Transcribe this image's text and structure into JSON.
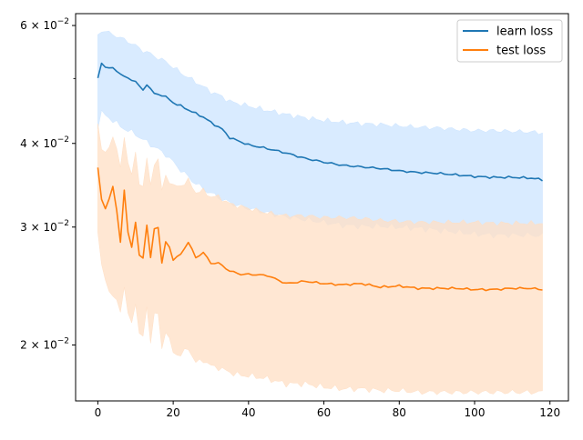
{
  "chart_data": {
    "type": "line",
    "title": "",
    "xlabel": "",
    "ylabel": "",
    "y_scale": "log",
    "xlim": [
      -5.9,
      124.9
    ],
    "ylim": [
      0.0165,
      0.0625
    ],
    "x_ticks": [
      0,
      20,
      40,
      60,
      80,
      100,
      120
    ],
    "x_tick_labels": [
      "0",
      "20",
      "40",
      "60",
      "80",
      "100",
      "120"
    ],
    "y_major_ticks": [
      0.02,
      0.03,
      0.04,
      0.06
    ],
    "y_tick_labels": [
      {
        "base": "2",
        "mult": "×",
        "ten": "10",
        "exp": "−2"
      },
      {
        "base": "3",
        "mult": "×",
        "ten": "10",
        "exp": "−2"
      },
      {
        "base": "4",
        "mult": "×",
        "ten": "10",
        "exp": "−2"
      },
      {
        "base": "6",
        "mult": "×",
        "ten": "10",
        "exp": "−2"
      }
    ],
    "y_minor_ticks": [
      0.05
    ],
    "grid": false,
    "legend": {
      "position": "top-right",
      "entries": [
        {
          "label": "learn loss",
          "color": "#1f77b4"
        },
        {
          "label": "test loss",
          "color": "#ff7f0e"
        }
      ]
    },
    "series": [
      {
        "name": "learn loss",
        "color": "#1f77b4",
        "band_color": "#cce4ff",
        "x_range": [
          0,
          118
        ],
        "anchors": {
          "x": [
            0,
            1,
            2,
            4,
            6,
            8,
            10,
            12,
            13,
            15,
            18,
            20,
            22,
            25,
            28,
            30,
            33,
            35,
            38,
            40,
            45,
            50,
            55,
            60,
            65,
            70,
            75,
            80,
            85,
            90,
            95,
            100,
            105,
            110,
            115,
            118
          ],
          "mean": [
            0.05,
            0.0527,
            0.052,
            0.0518,
            0.0508,
            0.05,
            0.0495,
            0.048,
            0.049,
            0.0475,
            0.047,
            0.046,
            0.0455,
            0.0446,
            0.0438,
            0.043,
            0.042,
            0.0408,
            0.0402,
            0.0398,
            0.0393,
            0.0387,
            0.038,
            0.0375,
            0.0371,
            0.0369,
            0.0367,
            0.0364,
            0.0362,
            0.0361,
            0.0359,
            0.0357,
            0.0356,
            0.0356,
            0.0355,
            0.0353
          ],
          "lower": [
            0.0425,
            0.0445,
            0.044,
            0.0433,
            0.0424,
            0.0418,
            0.0413,
            0.0405,
            0.0402,
            0.0395,
            0.0385,
            0.0375,
            0.0365,
            0.0352,
            0.0342,
            0.0337,
            0.033,
            0.0326,
            0.0322,
            0.032,
            0.0315,
            0.0311,
            0.0308,
            0.0305,
            0.0302,
            0.0301,
            0.0301,
            0.03,
            0.0299,
            0.0297,
            0.0295,
            0.0293,
            0.0292,
            0.0292,
            0.0292,
            0.0291
          ],
          "upper": [
            0.058,
            0.059,
            0.0588,
            0.0582,
            0.0575,
            0.0568,
            0.056,
            0.055,
            0.0548,
            0.054,
            0.053,
            0.052,
            0.051,
            0.0498,
            0.0486,
            0.0478,
            0.047,
            0.0462,
            0.0458,
            0.0455,
            0.0448,
            0.0442,
            0.0437,
            0.0433,
            0.043,
            0.0428,
            0.0427,
            0.0425,
            0.0423,
            0.0422,
            0.042,
            0.0418,
            0.0418,
            0.0417,
            0.0416,
            0.0415
          ]
        }
      },
      {
        "name": "test loss",
        "color": "#ff7f0e",
        "band_color": "#ffdfc4",
        "x_range": [
          0,
          118
        ],
        "anchors": {
          "x": [
            0,
            1,
            2,
            3,
            4,
            5,
            6,
            7,
            8,
            9,
            10,
            11,
            12,
            13,
            14,
            15,
            16,
            17,
            18,
            19,
            20,
            22,
            24,
            26,
            28,
            30,
            32,
            35,
            38,
            40,
            45,
            50,
            55,
            60,
            65,
            70,
            75,
            80,
            85,
            90,
            95,
            100,
            105,
            110,
            115,
            118
          ],
          "mean": [
            0.0368,
            0.033,
            0.032,
            0.033,
            0.0345,
            0.0318,
            0.0285,
            0.034,
            0.0295,
            0.028,
            0.0305,
            0.0272,
            0.027,
            0.0302,
            0.027,
            0.0298,
            0.03,
            0.0265,
            0.0285,
            0.028,
            0.0268,
            0.0273,
            0.0285,
            0.027,
            0.0275,
            0.0265,
            0.0265,
            0.0258,
            0.0255,
            0.0255,
            0.0254,
            0.0247,
            0.0249,
            0.0247,
            0.0246,
            0.0247,
            0.0244,
            0.0245,
            0.0243,
            0.0243,
            0.0243,
            0.0242,
            0.0242,
            0.0243,
            0.0243,
            0.0242
          ],
          "lower": [
            0.0295,
            0.0262,
            0.025,
            0.0242,
            0.0236,
            0.0232,
            0.0225,
            0.0245,
            0.0222,
            0.0215,
            0.0232,
            0.0208,
            0.0205,
            0.0228,
            0.0203,
            0.0222,
            0.0222,
            0.0198,
            0.021,
            0.0203,
            0.0195,
            0.0193,
            0.0198,
            0.0188,
            0.019,
            0.0186,
            0.0185,
            0.0182,
            0.018,
            0.018,
            0.0178,
            0.0175,
            0.0175,
            0.0173,
            0.0172,
            0.0172,
            0.0171,
            0.0171,
            0.017,
            0.017,
            0.017,
            0.017,
            0.017,
            0.017,
            0.017,
            0.017
          ],
          "upper": [
            0.0428,
            0.0395,
            0.0385,
            0.0395,
            0.041,
            0.0395,
            0.0365,
            0.041,
            0.0375,
            0.036,
            0.0385,
            0.035,
            0.0345,
            0.038,
            0.0345,
            0.0375,
            0.0378,
            0.034,
            0.0358,
            0.0352,
            0.0345,
            0.0346,
            0.0352,
            0.0338,
            0.034,
            0.0333,
            0.0333,
            0.0325,
            0.0322,
            0.032,
            0.0315,
            0.0312,
            0.0312,
            0.031,
            0.031,
            0.0309,
            0.0307,
            0.0306,
            0.0305,
            0.0305,
            0.0305,
            0.0305,
            0.0304,
            0.0304,
            0.0304,
            0.0304
          ]
        }
      }
    ]
  }
}
